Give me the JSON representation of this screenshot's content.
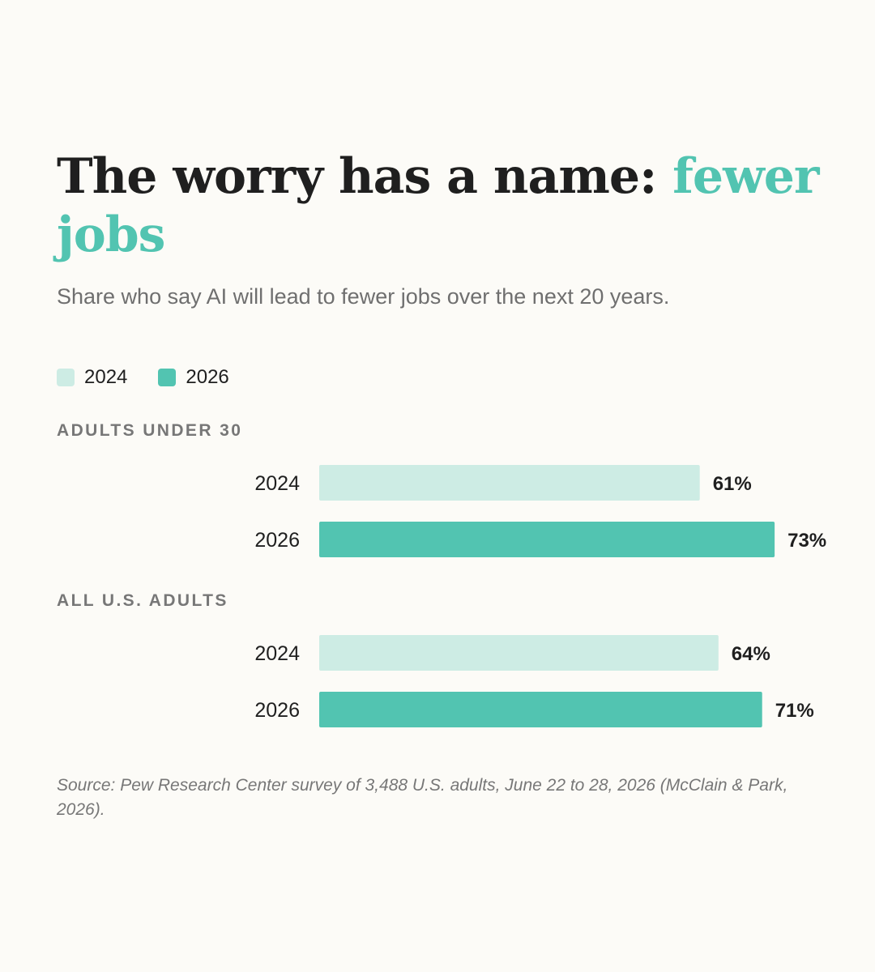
{
  "title": {
    "main": "The worry has a name: ",
    "accent": "fewer jobs"
  },
  "subtitle": "Share who say AI will lead to fewer jobs over the next 20 years.",
  "colors": {
    "light": "#cdece4",
    "dark": "#52c4b1",
    "accent": "#52c4b1",
    "text": "#1f1f1f",
    "muted": "#777777"
  },
  "chart_data": {
    "type": "bar",
    "orientation": "horizontal",
    "legend": [
      {
        "name": "2024",
        "color": "#cdece4"
      },
      {
        "name": "2026",
        "color": "#52c4b1"
      }
    ],
    "legend_placement": "top-left",
    "grid": false,
    "xlim": [
      0,
      100
    ],
    "unit": "%",
    "groups": [
      {
        "label": "ADULTS UNDER 30",
        "bars": [
          {
            "year": "2024",
            "value": 61,
            "label": "61%"
          },
          {
            "year": "2026",
            "value": 73,
            "label": "73%"
          }
        ]
      },
      {
        "label": "ALL U.S. ADULTS",
        "bars": [
          {
            "year": "2024",
            "value": 64,
            "label": "64%"
          },
          {
            "year": "2026",
            "value": 71,
            "label": "71%"
          }
        ]
      }
    ]
  },
  "source": "Source: Pew Research Center survey of 3,488 U.S. adults, June 22 to 28, 2026 (McClain & Park, 2026)."
}
